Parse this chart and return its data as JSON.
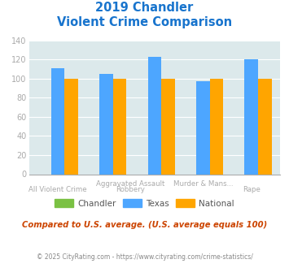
{
  "title_line1": "2019 Chandler",
  "title_line2": "Violent Crime Comparison",
  "title_color": "#1874cd",
  "chandler": [
    0,
    0,
    0,
    0,
    0
  ],
  "texas": [
    111,
    105,
    123,
    97,
    120
  ],
  "national": [
    100,
    100,
    100,
    100,
    100
  ],
  "chandler_color": "#7ac143",
  "texas_color": "#4da6ff",
  "national_color": "#ffa500",
  "plot_bg": "#dce9eb",
  "note": "Compared to U.S. average. (U.S. average equals 100)",
  "note_color": "#cc4400",
  "footer": "© 2025 CityRating.com - https://www.cityrating.com/crime-statistics/",
  "footer_color": "#888888",
  "label_color": "#aaaaaa",
  "ytick_color": "#aaaaaa"
}
